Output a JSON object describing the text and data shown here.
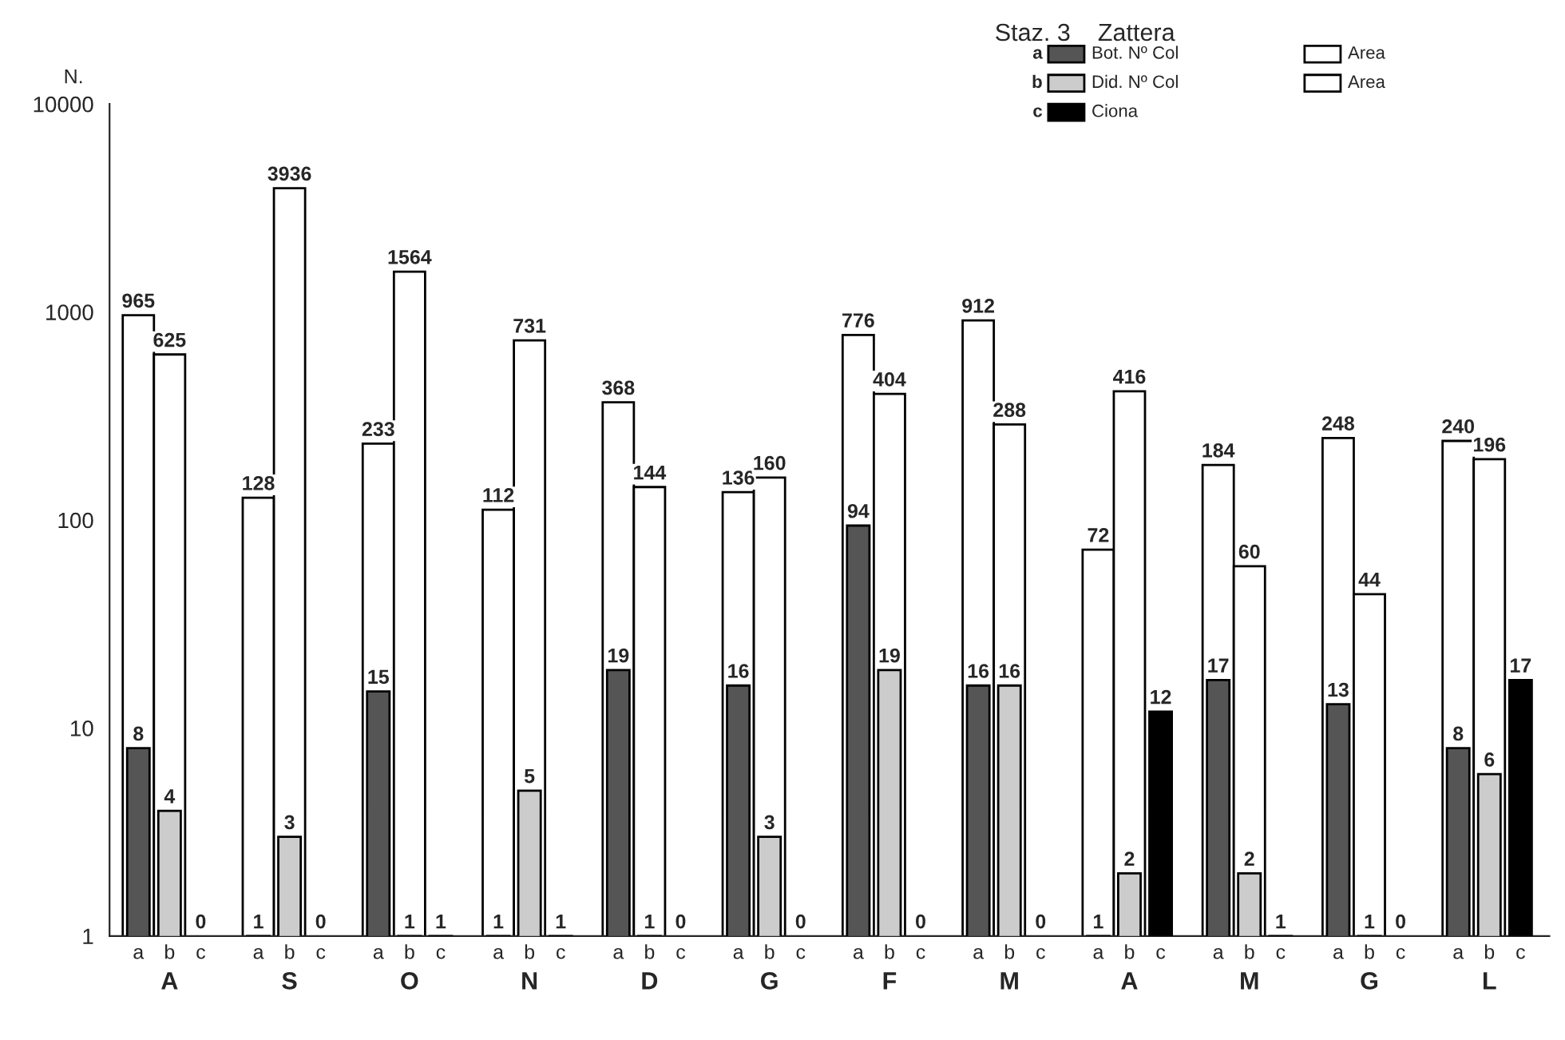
{
  "chart_data": {
    "type": "bar",
    "title": "Staz. 3    Zattera",
    "ylabel": "N.",
    "categories": [
      "A",
      "S",
      "O",
      "N",
      "D",
      "G",
      "F",
      "M",
      "A",
      "M",
      "G",
      "L"
    ],
    "series": [
      {
        "name": "Area",
        "color": "#ffffff",
        "values": [
          965,
          128,
          233,
          112,
          368,
          136,
          776,
          912,
          72,
          184,
          248,
          240
        ]
      },
      {
        "name": "Bot. Nº Col",
        "color": "#555555",
        "values": [
          8,
          1,
          15,
          1,
          19,
          16,
          94,
          16,
          1,
          17,
          13,
          8
        ]
      },
      {
        "name": "Area",
        "color": "#ffffff",
        "values": [
          625,
          3936,
          1564,
          731,
          144,
          160,
          404,
          288,
          416,
          60,
          44,
          196
        ]
      },
      {
        "name": "Did. Nº Col",
        "color": "#cccccc",
        "values": [
          4,
          3,
          1,
          5,
          1,
          3,
          19,
          16,
          2,
          2,
          1,
          6
        ]
      },
      {
        "name": "Ciona",
        "color": "#000000",
        "values": [
          null,
          null,
          1,
          1,
          null,
          null,
          null,
          null,
          12,
          1,
          null,
          17
        ],
        "value_labels": [
          "0",
          "0",
          "1",
          "1",
          "0",
          "0",
          "0",
          "0",
          "12",
          "1",
          "0",
          "17"
        ]
      }
    ],
    "annotations": [
      "a",
      "b",
      "c"
    ],
    "log": true,
    "ylim": [
      1,
      10000
    ],
    "yticks": [
      1,
      10,
      100,
      1000,
      10000
    ],
    "data_labels": true,
    "legend": "top right",
    "grid": false
  }
}
